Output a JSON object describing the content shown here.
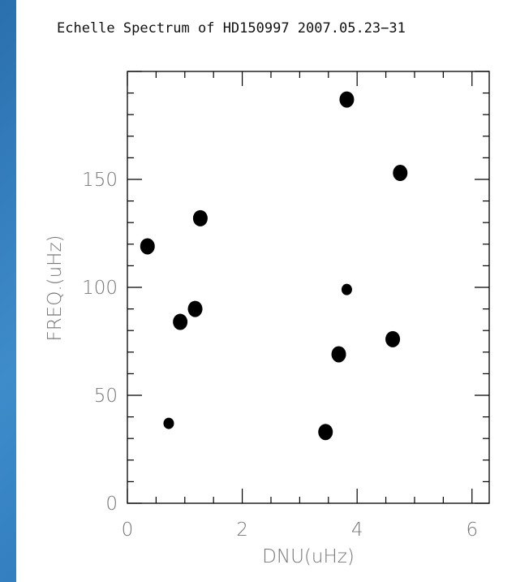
{
  "chart_data": {
    "type": "scatter",
    "title": "Echelle Spectrum of HD150997  2007.05.23−31",
    "xlabel": "DNU(uHz)",
    "ylabel": "FREQ.(uHz)",
    "xlim": [
      0,
      6.3
    ],
    "ylim": [
      0,
      200
    ],
    "xticks": [
      "0",
      "2",
      "4",
      "6"
    ],
    "yticks": [
      "0",
      "50",
      "100",
      "150"
    ],
    "grid": false,
    "marker_color": "#000000",
    "points": [
      {
        "x": 0.35,
        "y": 119,
        "size": "large"
      },
      {
        "x": 0.72,
        "y": 37,
        "size": "small"
      },
      {
        "x": 0.92,
        "y": 84,
        "size": "large"
      },
      {
        "x": 1.18,
        "y": 90,
        "size": "large"
      },
      {
        "x": 1.27,
        "y": 132,
        "size": "large"
      },
      {
        "x": 3.45,
        "y": 33,
        "size": "large"
      },
      {
        "x": 3.68,
        "y": 69,
        "size": "large"
      },
      {
        "x": 3.82,
        "y": 187,
        "size": "large"
      },
      {
        "x": 3.82,
        "y": 99,
        "size": "small"
      },
      {
        "x": 4.62,
        "y": 76,
        "size": "large"
      },
      {
        "x": 4.75,
        "y": 153,
        "size": "large"
      }
    ]
  }
}
